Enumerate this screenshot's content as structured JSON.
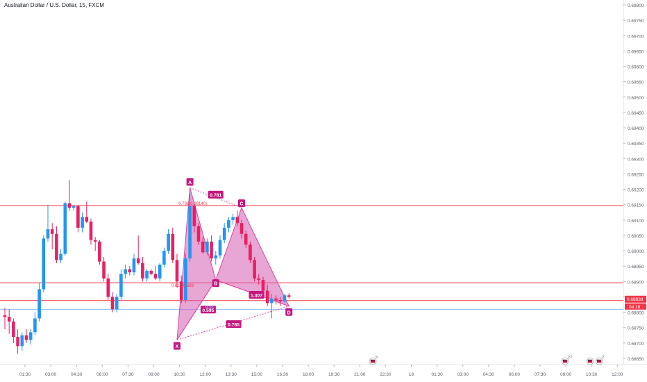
{
  "header": {
    "title": "Australian Dollar / U.S. Dollar, 15, FXCM"
  },
  "colors": {
    "up": "#2196f3",
    "down": "#e91e63",
    "pattern": "#e040a0",
    "pattern_fill": "#d35cb1",
    "level_line": "#f23645",
    "blue_line": "#90bff9",
    "price_tag": "#f23645"
  },
  "chart_data": {
    "type": "candlestick",
    "title": "Australian Dollar / U.S. Dollar, 15, FXCM",
    "ylim": [
      0.68645,
      0.6981
    ],
    "yticks": [
      "0.69800",
      "0.69750",
      "0.69700",
      "0.69650",
      "0.69600",
      "0.69550",
      "0.69500",
      "0.69450",
      "0.69400",
      "0.69350",
      "0.69300",
      "0.69250",
      "0.69200",
      "0.69150",
      "0.69100",
      "0.69050",
      "0.69000",
      "0.68950",
      "0.68900",
      "0.68850",
      "0.68800",
      "0.68750",
      "0.68700",
      "0.68650"
    ],
    "xticks": [
      "01:30",
      "03:00",
      "04:30",
      "06:00",
      "07:30",
      "09:00",
      "10:30",
      "12:00",
      "13:30",
      "15:00",
      "16:30",
      "18:00",
      "19:30",
      "21:00",
      "22:30",
      "18",
      "01:30",
      "03:00",
      "04:30",
      "06:00",
      "07:30",
      "09:00",
      "10:30",
      "12:00"
    ],
    "candles": [
      {
        "o": 0.6879,
        "h": 0.68815,
        "l": 0.68745,
        "c": 0.68785
      },
      {
        "o": 0.68785,
        "h": 0.6881,
        "l": 0.6873,
        "c": 0.6877
      },
      {
        "o": 0.6877,
        "h": 0.6878,
        "l": 0.687,
        "c": 0.6872
      },
      {
        "o": 0.6872,
        "h": 0.68745,
        "l": 0.68665,
        "c": 0.6869
      },
      {
        "o": 0.6869,
        "h": 0.68735,
        "l": 0.68675,
        "c": 0.68725
      },
      {
        "o": 0.68725,
        "h": 0.68745,
        "l": 0.687,
        "c": 0.6871
      },
      {
        "o": 0.6871,
        "h": 0.68745,
        "l": 0.68695,
        "c": 0.68735
      },
      {
        "o": 0.68735,
        "h": 0.688,
        "l": 0.68725,
        "c": 0.6878
      },
      {
        "o": 0.6878,
        "h": 0.68895,
        "l": 0.6877,
        "c": 0.68875
      },
      {
        "o": 0.68875,
        "h": 0.6905,
        "l": 0.68865,
        "c": 0.6904
      },
      {
        "o": 0.6904,
        "h": 0.6915,
        "l": 0.6903,
        "c": 0.6907
      },
      {
        "o": 0.6907,
        "h": 0.6909,
        "l": 0.69005,
        "c": 0.69055
      },
      {
        "o": 0.69055,
        "h": 0.6908,
        "l": 0.6896,
        "c": 0.6897
      },
      {
        "o": 0.6897,
        "h": 0.69005,
        "l": 0.6896,
        "c": 0.6899
      },
      {
        "o": 0.6899,
        "h": 0.6916,
        "l": 0.68985,
        "c": 0.69155
      },
      {
        "o": 0.69155,
        "h": 0.6923,
        "l": 0.6913,
        "c": 0.6914
      },
      {
        "o": 0.6914,
        "h": 0.6915,
        "l": 0.6913,
        "c": 0.69145
      },
      {
        "o": 0.69145,
        "h": 0.6915,
        "l": 0.6906,
        "c": 0.69075
      },
      {
        "o": 0.69075,
        "h": 0.69125,
        "l": 0.6906,
        "c": 0.6911
      },
      {
        "o": 0.6911,
        "h": 0.6916,
        "l": 0.6909,
        "c": 0.69095
      },
      {
        "o": 0.69095,
        "h": 0.69105,
        "l": 0.6902,
        "c": 0.69035
      },
      {
        "o": 0.69035,
        "h": 0.69045,
        "l": 0.69,
        "c": 0.6903
      },
      {
        "o": 0.6903,
        "h": 0.69035,
        "l": 0.68955,
        "c": 0.68965
      },
      {
        "o": 0.68965,
        "h": 0.6898,
        "l": 0.689,
        "c": 0.6891
      },
      {
        "o": 0.6891,
        "h": 0.68925,
        "l": 0.6884,
        "c": 0.6885
      },
      {
        "o": 0.6885,
        "h": 0.68865,
        "l": 0.688,
        "c": 0.6881
      },
      {
        "o": 0.6881,
        "h": 0.6886,
        "l": 0.688,
        "c": 0.6885
      },
      {
        "o": 0.6885,
        "h": 0.6894,
        "l": 0.6884,
        "c": 0.68925
      },
      {
        "o": 0.68925,
        "h": 0.68955,
        "l": 0.6891,
        "c": 0.6894
      },
      {
        "o": 0.6894,
        "h": 0.6895,
        "l": 0.6892,
        "c": 0.6893
      },
      {
        "o": 0.6893,
        "h": 0.6899,
        "l": 0.6892,
        "c": 0.68975
      },
      {
        "o": 0.68975,
        "h": 0.6905,
        "l": 0.68955,
        "c": 0.6896
      },
      {
        "o": 0.6896,
        "h": 0.6898,
        "l": 0.689,
        "c": 0.6891
      },
      {
        "o": 0.6891,
        "h": 0.6894,
        "l": 0.689,
        "c": 0.68935
      },
      {
        "o": 0.68935,
        "h": 0.6894,
        "l": 0.6892,
        "c": 0.68925
      },
      {
        "o": 0.68925,
        "h": 0.6895,
        "l": 0.68905,
        "c": 0.6891
      },
      {
        "o": 0.6891,
        "h": 0.6896,
        "l": 0.689,
        "c": 0.68955
      },
      {
        "o": 0.68955,
        "h": 0.6901,
        "l": 0.68945,
        "c": 0.69
      },
      {
        "o": 0.69,
        "h": 0.6907,
        "l": 0.6899,
        "c": 0.69055
      },
      {
        "o": 0.69055,
        "h": 0.69075,
        "l": 0.6896,
        "c": 0.6897
      },
      {
        "o": 0.6897,
        "h": 0.6899,
        "l": 0.6888,
        "c": 0.689
      },
      {
        "o": 0.689,
        "h": 0.6892,
        "l": 0.6883,
        "c": 0.6884
      },
      {
        "o": 0.6884,
        "h": 0.6899,
        "l": 0.6883,
        "c": 0.68975
      },
      {
        "o": 0.68975,
        "h": 0.6919,
        "l": 0.68965,
        "c": 0.69145
      },
      {
        "o": 0.69145,
        "h": 0.6915,
        "l": 0.6906,
        "c": 0.6908
      },
      {
        "o": 0.6908,
        "h": 0.6909,
        "l": 0.6902,
        "c": 0.6903
      },
      {
        "o": 0.6903,
        "h": 0.69045,
        "l": 0.6899,
        "c": 0.68995
      },
      {
        "o": 0.68995,
        "h": 0.6904,
        "l": 0.68985,
        "c": 0.6903
      },
      {
        "o": 0.6903,
        "h": 0.6905,
        "l": 0.68965,
        "c": 0.68975
      },
      {
        "o": 0.68975,
        "h": 0.69,
        "l": 0.68955,
        "c": 0.68985
      },
      {
        "o": 0.68985,
        "h": 0.6905,
        "l": 0.68975,
        "c": 0.69035
      },
      {
        "o": 0.69035,
        "h": 0.6909,
        "l": 0.69025,
        "c": 0.69075
      },
      {
        "o": 0.69075,
        "h": 0.6911,
        "l": 0.6906,
        "c": 0.691
      },
      {
        "o": 0.691,
        "h": 0.6912,
        "l": 0.69085,
        "c": 0.6911
      },
      {
        "o": 0.6911,
        "h": 0.6913,
        "l": 0.6908,
        "c": 0.6909
      },
      {
        "o": 0.6909,
        "h": 0.691,
        "l": 0.6904,
        "c": 0.69055
      },
      {
        "o": 0.69055,
        "h": 0.69065,
        "l": 0.6901,
        "c": 0.6902
      },
      {
        "o": 0.6902,
        "h": 0.6903,
        "l": 0.6896,
        "c": 0.6897
      },
      {
        "o": 0.6897,
        "h": 0.6898,
        "l": 0.689,
        "c": 0.6891
      },
      {
        "o": 0.6891,
        "h": 0.68925,
        "l": 0.6889,
        "c": 0.68905
      },
      {
        "o": 0.68905,
        "h": 0.68915,
        "l": 0.6886,
        "c": 0.6887
      },
      {
        "o": 0.6887,
        "h": 0.6889,
        "l": 0.6882,
        "c": 0.6883
      },
      {
        "o": 0.6883,
        "h": 0.6886,
        "l": 0.6878,
        "c": 0.68845
      },
      {
        "o": 0.68845,
        "h": 0.68855,
        "l": 0.68825,
        "c": 0.6884
      },
      {
        "o": 0.6884,
        "h": 0.6885,
        "l": 0.6882,
        "c": 0.68835
      },
      {
        "o": 0.68835,
        "h": 0.6886,
        "l": 0.6883,
        "c": 0.68855
      },
      {
        "o": 0.68855,
        "h": 0.68862,
        "l": 0.68845,
        "c": 0.6885
      }
    ],
    "harmonic_pattern": {
      "points": [
        {
          "label": "X",
          "price": 0.6871
        },
        {
          "label": "A",
          "price": 0.69205
        },
        {
          "label": "B",
          "price": 0.68905
        },
        {
          "label": "C",
          "price": 0.6914
        },
        {
          "label": "D",
          "price": 0.6882
        }
      ],
      "ratios": {
        "xb": "0.595",
        "ac": "0.781",
        "bd": "1.407",
        "xd": "0.785"
      }
    },
    "fib_labels": {
      "c_level": "0.786(0.69140)",
      "b_level": "0.618(0.689",
      "d_level": "809)"
    },
    "horizontal_lines": [
      {
        "price": 0.69147,
        "color": "#f23645"
      },
      {
        "price": 0.68896,
        "color": "#f23645"
      },
      {
        "price": 0.68838,
        "color": "#f23645"
      },
      {
        "price": 0.68809,
        "color": "#90bff9"
      }
    ],
    "price_tag": {
      "price_text": "0.68838",
      "countdown": "04:18",
      "price": 0.68838
    },
    "events": [
      {
        "kind": "flag",
        "count": "5"
      },
      {
        "kind": "flag",
        "count": "27"
      },
      {
        "kind": "flag",
        "count": ""
      },
      {
        "kind": "flag",
        "count": "2"
      }
    ]
  }
}
